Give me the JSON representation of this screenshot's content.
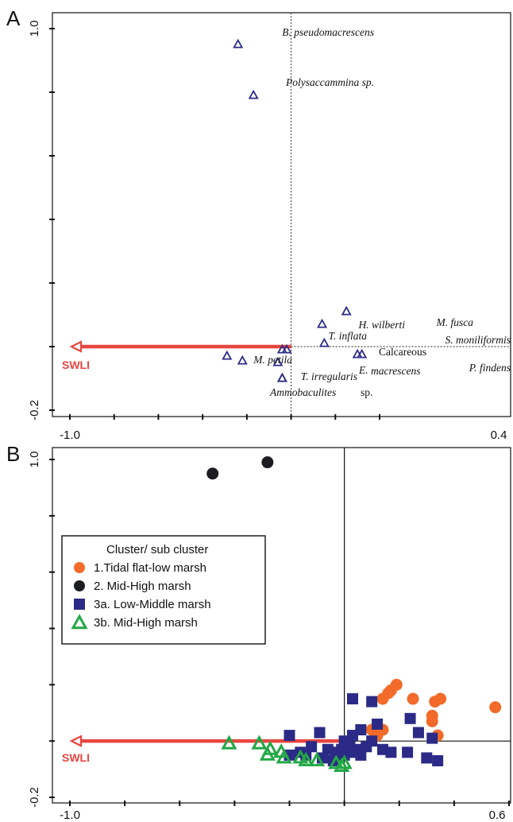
{
  "chart_data": [
    {
      "panel": "A",
      "type": "scatter",
      "xlim": [
        -1.0,
        0.4
      ],
      "ylim": [
        -0.2,
        1.0
      ],
      "x_tick_labels": [
        "-1.0",
        "0.4"
      ],
      "y_tick_labels": [
        "1.0",
        "-0.2"
      ],
      "vector": {
        "label": "SWLI",
        "x": -1.0,
        "y": 0.0,
        "color": "#e8453f"
      },
      "points": [
        {
          "label": "B. pseudomacrescens",
          "x": -0.24,
          "y": 0.95
        },
        {
          "label": "Polysaccammina sp.",
          "x": -0.17,
          "y": 0.79
        },
        {
          "label": "M. fusca",
          "x": 0.25,
          "y": 0.11
        },
        {
          "label": "H. wilberti",
          "x": 0.14,
          "y": 0.07
        },
        {
          "label": "S. moniliformis",
          "x": 0.15,
          "y": 0.01
        },
        {
          "label": "T. inflata",
          "x": -0.04,
          "y": -0.01
        },
        {
          "label": "Calcareous",
          "x": -0.02,
          "y": -0.01
        },
        {
          "label": "P. findens",
          "x": 0.3,
          "y": -0.025
        },
        {
          "label": "P. findens",
          "x": 0.32,
          "y": -0.025
        },
        {
          "label": "M. petila",
          "x": -0.29,
          "y": -0.03
        },
        {
          "label": "T. irregularis",
          "x": -0.22,
          "y": -0.045
        },
        {
          "label": "E. macrescens",
          "x": -0.06,
          "y": -0.05
        },
        {
          "label": "E. macrescens",
          "x": -0.04,
          "y": -0.1
        },
        {
          "label": "Ammobaculites sp.",
          "x": -0.04,
          "y": -0.1
        }
      ],
      "annotations": [
        {
          "text": "B. pseudomacrescens",
          "italic": true
        },
        {
          "text": "Polysaccammina sp.",
          "italic": true
        },
        {
          "text": "M. fusca",
          "italic": true
        },
        {
          "text": "H. wilberti",
          "italic": true
        },
        {
          "text": "S. moniliformis",
          "italic": true
        },
        {
          "text": "T. inflata",
          "italic": true
        },
        {
          "text": "Calcareous",
          "italic": false
        },
        {
          "text": "P. findens",
          "italic": true
        },
        {
          "text": "M. petila",
          "italic": true
        },
        {
          "text": "T. irregularis",
          "italic": true
        },
        {
          "text": "E.",
          "italic": true
        },
        {
          "text": "macrescens",
          "italic": true
        },
        {
          "text": "Ammobaculites",
          "italic": true
        },
        {
          "text": "sp.",
          "italic": false
        }
      ],
      "marker": "open-triangle",
      "marker_color": "#2b2a86"
    },
    {
      "panel": "B",
      "type": "scatter",
      "xlim": [
        -1.0,
        0.6
      ],
      "ylim": [
        -0.2,
        1.0
      ],
      "x_tick_labels": [
        "-1.0",
        "0.6"
      ],
      "y_tick_labels": [
        "1.0",
        "-0.2"
      ],
      "vector": {
        "label": "SWLI",
        "x": -1.0,
        "y": 0.0,
        "color": "#e8453f"
      },
      "legend": {
        "title": "Cluster/ sub cluster",
        "placement": "middle-left"
      },
      "series": [
        {
          "number": "1.",
          "name": "Tidal flat-low marsh",
          "marker": "circle",
          "color": "#f26b2a",
          "points": [
            [
              0.19,
              0.2
            ],
            [
              0.17,
              0.18
            ],
            [
              0.16,
              0.17
            ],
            [
              0.14,
              0.15
            ],
            [
              0.25,
              0.15
            ],
            [
              0.33,
              0.14
            ],
            [
              0.35,
              0.15
            ],
            [
              0.32,
              0.09
            ],
            [
              0.32,
              0.07
            ],
            [
              0.55,
              0.12
            ],
            [
              0.34,
              0.02
            ],
            [
              0.1,
              0.04
            ],
            [
              0.11,
              0.03
            ],
            [
              0.12,
              0.03
            ],
            [
              0.14,
              0.04
            ],
            [
              0.12,
              0.02
            ]
          ]
        },
        {
          "number": "2.",
          "name": "Mid-High marsh",
          "marker": "circle",
          "color": "#1b1d20",
          "points": [
            [
              -0.48,
              0.95
            ],
            [
              -0.28,
              0.99
            ]
          ]
        },
        {
          "number": "3a.",
          "name": "Low-Middle marsh",
          "marker": "square",
          "color": "#2b2a86",
          "points": [
            [
              0.03,
              0.15
            ],
            [
              0.1,
              0.14
            ],
            [
              0.24,
              0.08
            ],
            [
              0.03,
              0.02
            ],
            [
              -0.09,
              0.03
            ],
            [
              0.0,
              0.0
            ],
            [
              0.12,
              0.06
            ],
            [
              0.06,
              0.04
            ],
            [
              0.02,
              -0.02
            ],
            [
              0.05,
              -0.03
            ],
            [
              0.08,
              -0.02
            ],
            [
              0.1,
              0.0
            ],
            [
              0.03,
              -0.04
            ],
            [
              0.0,
              -0.05
            ],
            [
              -0.03,
              -0.04
            ],
            [
              -0.06,
              -0.03
            ],
            [
              -0.12,
              -0.02
            ],
            [
              -0.16,
              -0.04
            ],
            [
              -0.2,
              -0.05
            ],
            [
              -0.08,
              -0.06
            ],
            [
              -0.04,
              -0.07
            ],
            [
              0.14,
              -0.03
            ],
            [
              0.17,
              -0.04
            ],
            [
              0.23,
              -0.04
            ],
            [
              0.27,
              0.03
            ],
            [
              0.32,
              0.01
            ],
            [
              0.3,
              -0.06
            ],
            [
              0.34,
              -0.07
            ],
            [
              -0.2,
              0.02
            ],
            [
              -0.14,
              -0.05
            ],
            [
              -0.01,
              -0.03
            ],
            [
              0.06,
              -0.05
            ]
          ]
        },
        {
          "number": "3b.",
          "name": "Mid-High marsh",
          "marker": "open-triangle",
          "color": "#22a845",
          "points": [
            [
              -0.42,
              -0.01
            ],
            [
              -0.31,
              -0.01
            ],
            [
              -0.27,
              -0.03
            ],
            [
              -0.28,
              -0.05
            ],
            [
              -0.23,
              -0.04
            ],
            [
              -0.22,
              -0.06
            ],
            [
              -0.16,
              -0.06
            ],
            [
              -0.14,
              -0.07
            ],
            [
              -0.1,
              -0.07
            ],
            [
              -0.03,
              -0.08
            ],
            [
              -0.01,
              -0.09
            ],
            [
              0.0,
              -0.08
            ]
          ]
        }
      ]
    }
  ],
  "panel_letters": [
    "A",
    "B"
  ]
}
